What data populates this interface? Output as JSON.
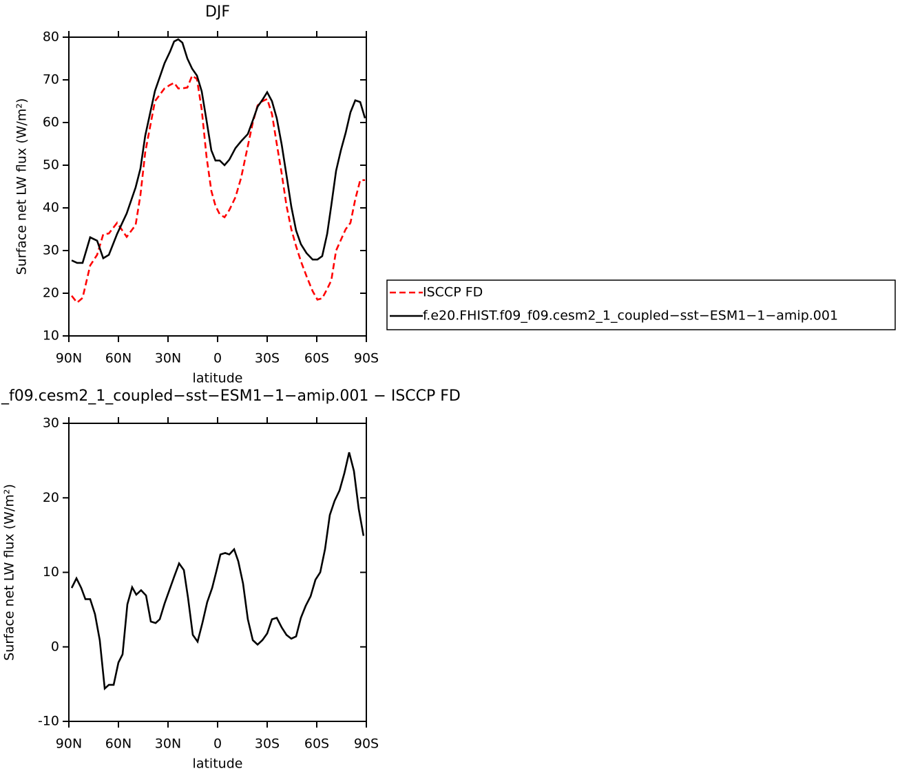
{
  "chart_data": [
    {
      "type": "line",
      "title": "DJF",
      "xlabel": "latitude",
      "ylabel": "Surface net LW flux (W/m²)",
      "x": [
        88.3,
        85,
        81.7,
        77.1,
        72.9,
        69.2,
        65.8,
        60.8,
        55,
        49.6,
        46.7,
        43.8,
        37.9,
        32.1,
        28.8,
        26.3,
        23.8,
        21.3,
        18.3,
        15.4,
        12.5,
        9.6,
        6.7,
        3.8,
        1.3,
        -1.3,
        -4.2,
        -7.1,
        -10.8,
        -14.2,
        -18.3,
        -21.3,
        -24.2,
        -27.1,
        -30,
        -32.9,
        -35.8,
        -38.8,
        -41.7,
        -44.6,
        -47.5,
        -50.4,
        -53.8,
        -57.5,
        -60.4,
        -63.3,
        -66.3,
        -68.8,
        -71.7,
        -74.6,
        -77.5,
        -80.4,
        -83.3,
        -86.3,
        -89.2
      ],
      "xlim": [
        90,
        -90
      ],
      "xticks": [
        {
          "value": 90,
          "label": "90N"
        },
        {
          "value": 60,
          "label": "60N"
        },
        {
          "value": 30,
          "label": "30N"
        },
        0,
        {
          "value": -30,
          "label": "30S"
        },
        {
          "value": -60,
          "label": "60S"
        },
        {
          "value": -90,
          "label": "90S"
        }
      ],
      "ylim": [
        10,
        80
      ],
      "yticks": [
        10,
        20,
        30,
        40,
        50,
        60,
        70,
        80
      ],
      "legend": "right",
      "series": [
        {
          "name": "ISCCP FD",
          "color": "#ff0000",
          "linestyle": "dashed",
          "values": [
            19.4,
            17.8,
            18.9,
            26.5,
            29,
            33.8,
            34,
            36.5,
            33.2,
            36,
            43,
            53,
            65,
            68,
            68.8,
            69.3,
            68,
            68,
            68.2,
            71,
            70.2,
            63,
            52,
            44,
            40.5,
            38.5,
            37.8,
            39.5,
            42.5,
            47,
            54.5,
            60,
            64,
            65,
            65.5,
            62,
            55,
            48,
            40.5,
            35,
            31,
            27.5,
            24,
            20.5,
            18.5,
            18.8,
            21,
            23,
            30,
            32.5,
            35,
            36.5,
            42,
            46.5,
            46.5
          ]
        },
        {
          "name": "f.e20.FHIST.f09_f09.cesm2_1_coupled−sst−ESM1−1−amip.001",
          "color": "#000000",
          "linestyle": "solid",
          "values": [
            27.7,
            27.1,
            27.1,
            33.1,
            32.3,
            28.2,
            29,
            33.9,
            38.7,
            44.8,
            49.2,
            56.9,
            67.4,
            73.9,
            76.6,
            79,
            79.5,
            78.7,
            75,
            72.6,
            71,
            67.3,
            60.5,
            53.5,
            51.1,
            51.1,
            50,
            51.3,
            54,
            55.6,
            57.3,
            60.5,
            63.7,
            65.3,
            67.1,
            65,
            61,
            54.8,
            47.6,
            40.3,
            34.7,
            31.5,
            29.4,
            27.9,
            27.9,
            28.7,
            33.9,
            40.6,
            48.7,
            53.5,
            57.6,
            62.4,
            65.2,
            64.8,
            61
          ]
        }
      ]
    },
    {
      "type": "line",
      "title": "_f09.cesm2_1_coupled−sst−ESM1−1−amip.001 − ISCCP FD",
      "xlabel": "latitude",
      "ylabel": "Surface net LW flux (W/m²)",
      "x": [
        88.3,
        85.4,
        82.5,
        80,
        77.1,
        74.2,
        71.3,
        68.3,
        65.8,
        62.9,
        60,
        57.5,
        54.6,
        51.7,
        49.2,
        46.3,
        43.3,
        40.4,
        37.5,
        35,
        32.1,
        29.2,
        26.3,
        23.3,
        20.4,
        17.9,
        15,
        12.1,
        9.2,
        6.3,
        3.3,
        0.8,
        -1.7,
        -4.6,
        -7.1,
        -10,
        -12.5,
        -15.4,
        -18.3,
        -21.3,
        -24.2,
        -27.1,
        -30,
        -32.9,
        -35.8,
        -38.8,
        -41.7,
        -44.6,
        -47.5,
        -50.4,
        -53.3,
        -56.3,
        -59.2,
        -62.1,
        -65,
        -67.9,
        -70.8,
        -73.8,
        -76.7,
        -79.6,
        -82.5,
        -85.4,
        -88.3
      ],
      "xlim": [
        90,
        -90
      ],
      "xticks": [
        {
          "value": 90,
          "label": "90N"
        },
        {
          "value": 60,
          "label": "60N"
        },
        {
          "value": 30,
          "label": "30N"
        },
        0,
        {
          "value": -30,
          "label": "30S"
        },
        {
          "value": -60,
          "label": "60S"
        },
        {
          "value": -90,
          "label": "90S"
        }
      ],
      "ylim": [
        -10,
        30
      ],
      "yticks": [
        -10,
        0,
        10,
        20,
        30
      ],
      "series": [
        {
          "color": "#000000",
          "linestyle": "solid",
          "values": [
            7.9,
            9.2,
            7.9,
            6.4,
            6.4,
            4.4,
            0.9,
            -5.6,
            -5.1,
            -5.1,
            -2.1,
            -1,
            5.7,
            8,
            7,
            7.6,
            6.9,
            3.4,
            3.2,
            3.7,
            5.8,
            7.6,
            9.4,
            11.2,
            10.3,
            6.6,
            1.6,
            0.7,
            3.2,
            6,
            7.9,
            10.1,
            12.4,
            12.6,
            12.4,
            13.1,
            11.5,
            8.5,
            3.7,
            0.9,
            0.3,
            0.9,
            1.8,
            3.7,
            3.9,
            2.6,
            1.6,
            1.1,
            1.4,
            3.9,
            5.5,
            6.8,
            9,
            10,
            13.1,
            17.7,
            19.6,
            21,
            23.3,
            26.1,
            23.6,
            18.5,
            14.9
          ]
        }
      ]
    }
  ]
}
